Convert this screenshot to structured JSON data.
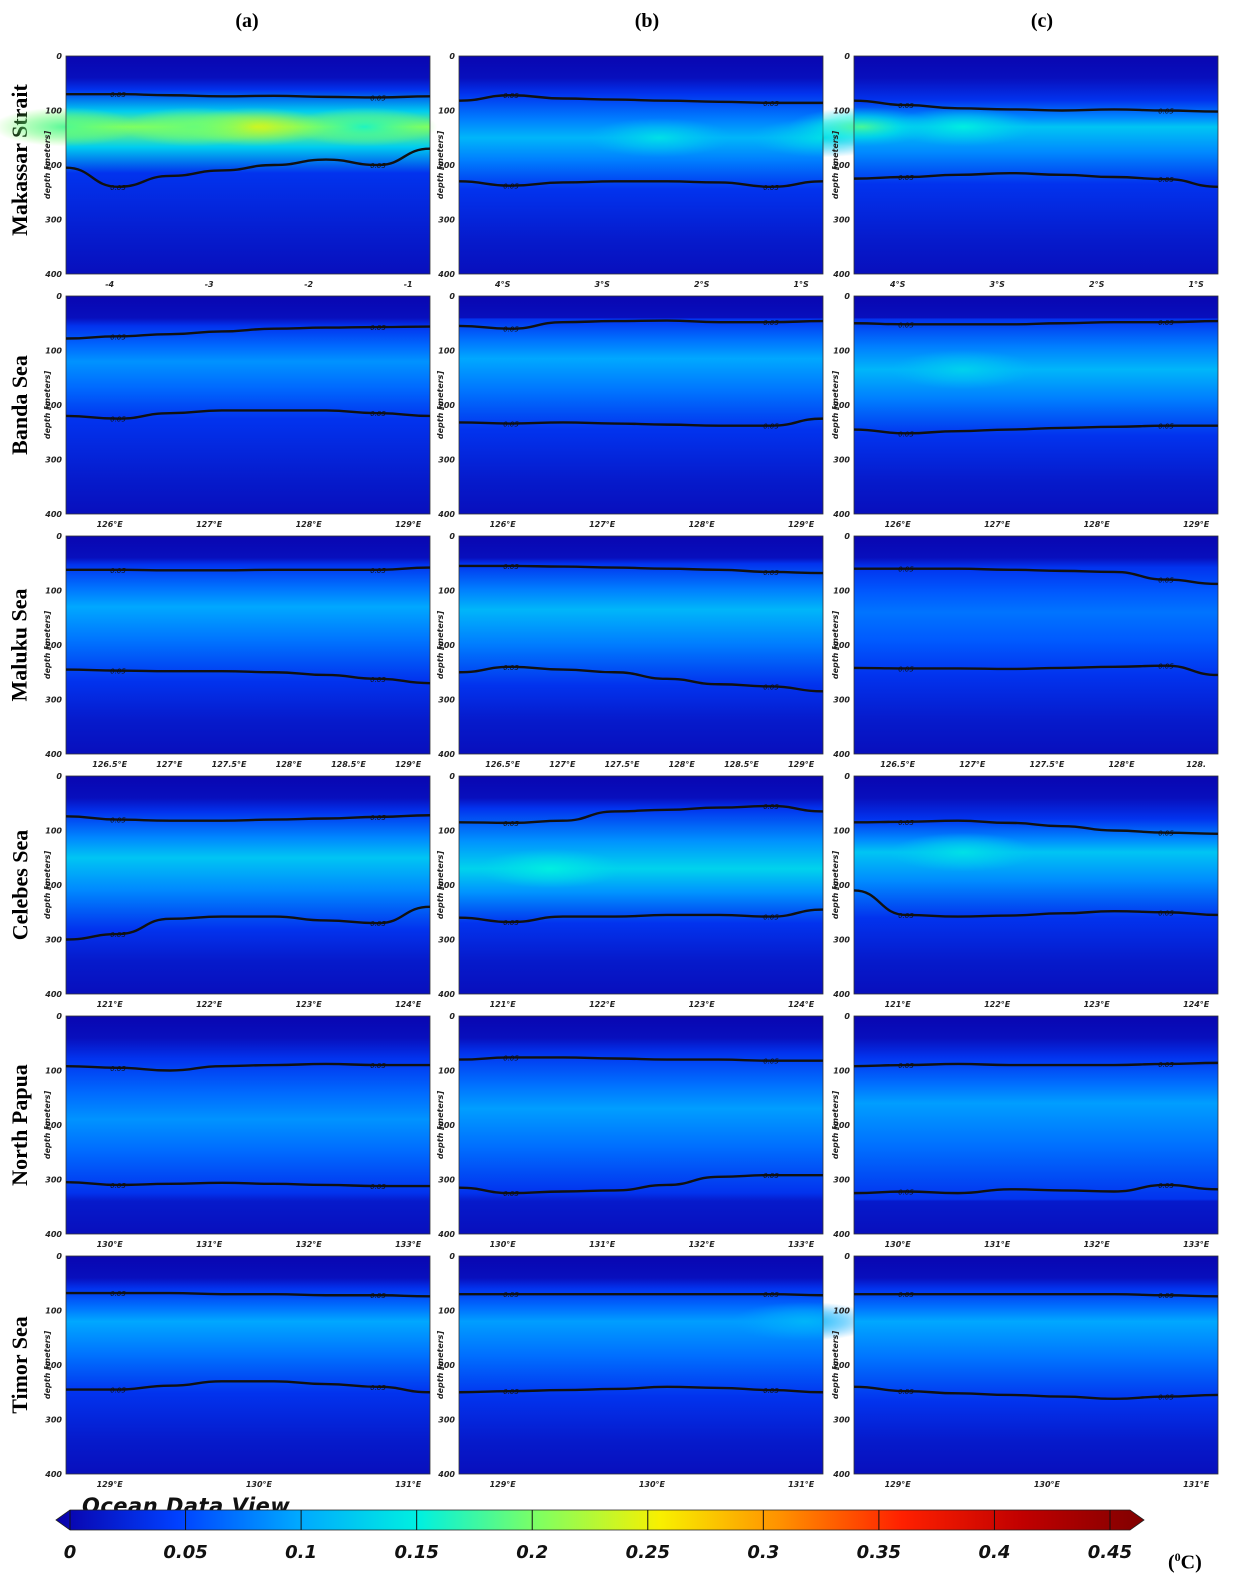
{
  "chart_data": {
    "type": "heatmap",
    "variable_unit": "(0C)",
    "contour_label": "0.05",
    "watermark": "Ocean Data View",
    "columns": [
      "(a)",
      "(b)",
      "(c)"
    ],
    "y_axis": {
      "label": "depth [meters]",
      "ticks": [
        "0",
        "100",
        "200",
        "300",
        "400"
      ],
      "range": [
        0,
        400
      ]
    },
    "colorbar": {
      "ticks": [
        "0",
        "0.05",
        "0.1",
        "0.15",
        "0.2",
        "0.25",
        "0.3",
        "0.35",
        "0.4",
        "0.45"
      ],
      "range": [
        0,
        0.45
      ],
      "colors": [
        "#0a00a8",
        "#0040ff",
        "#00a8ff",
        "#00f0e0",
        "#80ff60",
        "#f8f000",
        "#ff9000",
        "#ff2000",
        "#c00000",
        "#800000"
      ]
    },
    "rows": [
      {
        "name": "Makassar Strait",
        "panels": [
          {
            "xticks": [
              "-4",
              "-3",
              "-2",
              "-1"
            ],
            "contour_upper": [
              70,
              70,
              72,
              74,
              73,
              75,
              76,
              74
            ],
            "contour_lower": [
              205,
              240,
              220,
              210,
              200,
              190,
              200,
              170
            ],
            "core_depth": 130,
            "core_value": 0.2,
            "hot_spots": [
              {
                "x": 0.52,
                "v": 0.24
              },
              {
                "x": 0.35,
                "v": 0.19
              },
              {
                "x": 0.0,
                "v": 0.18
              },
              {
                "x": 0.82,
                "v": 0.16
              }
            ]
          },
          {
            "xticks": [
              "4°S",
              "3°S",
              "2°S",
              "1°S"
            ],
            "contour_upper": [
              82,
              72,
              78,
              80,
              82,
              84,
              86,
              86
            ],
            "contour_lower": [
              230,
              238,
              232,
              230,
              230,
              232,
              240,
              230
            ],
            "core_depth": 150,
            "core_value": 0.11,
            "hot_spots": [
              {
                "x": 0.55,
                "v": 0.14
              },
              {
                "x": 1.0,
                "v": 0.14
              }
            ]
          },
          {
            "xticks": [
              "4°S",
              "3°S",
              "2°S",
              "1°S"
            ],
            "contour_upper": [
              82,
              90,
              96,
              98,
              100,
              98,
              100,
              102
            ],
            "contour_lower": [
              225,
              222,
              218,
              215,
              218,
              222,
              226,
              240
            ],
            "core_depth": 130,
            "core_value": 0.12,
            "hot_spots": [
              {
                "x": 0.02,
                "v": 0.18
              },
              {
                "x": 0.3,
                "v": 0.15
              }
            ]
          }
        ]
      },
      {
        "name": "Banda Sea",
        "panels": [
          {
            "xticks": [
              "126°E",
              "127°E",
              "128°E",
              "129°E"
            ],
            "contour_upper": [
              78,
              74,
              70,
              65,
              60,
              58,
              57,
              56
            ],
            "contour_lower": [
              220,
              225,
              215,
              210,
              210,
              210,
              215,
              220
            ],
            "core_depth": 120,
            "core_value": 0.09,
            "hot_spots": []
          },
          {
            "xticks": [
              "126°E",
              "127°E",
              "128°E",
              "129°E"
            ],
            "contour_upper": [
              55,
              60,
              48,
              46,
              45,
              48,
              48,
              46
            ],
            "contour_lower": [
              232,
              234,
              232,
              234,
              236,
              238,
              238,
              225
            ],
            "core_depth": 115,
            "core_value": 0.1,
            "hot_spots": []
          },
          {
            "xticks": [
              "126°E",
              "127°E",
              "128°E",
              "129°E"
            ],
            "contour_upper": [
              50,
              52,
              52,
              52,
              50,
              48,
              48,
              46
            ],
            "contour_lower": [
              245,
              252,
              248,
              245,
              242,
              240,
              238,
              238
            ],
            "core_depth": 135,
            "core_value": 0.11,
            "hot_spots": [
              {
                "x": 0.3,
                "v": 0.13
              }
            ]
          }
        ]
      },
      {
        "name": "Maluku Sea",
        "panels": [
          {
            "xticks": [
              "126.5°E",
              "127°E",
              "127.5°E",
              "128°E",
              "128.5°E",
              "129°E"
            ],
            "contour_upper": [
              62,
              62,
              63,
              63,
              62,
              62,
              62,
              58
            ],
            "contour_lower": [
              245,
              247,
              248,
              248,
              250,
              255,
              262,
              270
            ],
            "core_depth": 130,
            "core_value": 0.1,
            "hot_spots": []
          },
          {
            "xticks": [
              "126.5°E",
              "127°E",
              "127.5°E",
              "128°E",
              "128.5°E",
              "129°E"
            ],
            "contour_upper": [
              55,
              55,
              56,
              58,
              60,
              62,
              66,
              68
            ],
            "contour_lower": [
              250,
              240,
              245,
              250,
              262,
              272,
              276,
              285
            ],
            "core_depth": 135,
            "core_value": 0.11,
            "hot_spots": []
          },
          {
            "xticks": [
              "126.5°E",
              "127°E",
              "127.5°E",
              "128°E",
              "128."
            ],
            "contour_upper": [
              60,
              60,
              60,
              62,
              64,
              66,
              80,
              88
            ],
            "contour_lower": [
              242,
              243,
              243,
              244,
              242,
              240,
              238,
              255
            ],
            "core_depth": 140,
            "core_value": 0.075,
            "hot_spots": []
          }
        ]
      },
      {
        "name": "Celebes Sea",
        "panels": [
          {
            "xticks": [
              "121°E",
              "122°E",
              "123°E",
              "124°E"
            ],
            "contour_upper": [
              74,
              80,
              82,
              82,
              80,
              78,
              75,
              72
            ],
            "contour_lower": [
              300,
              290,
              262,
              258,
              258,
              265,
              270,
              240
            ],
            "core_depth": 150,
            "core_value": 0.12,
            "hot_spots": []
          },
          {
            "xticks": [
              "121°E",
              "122°E",
              "123°E",
              "124°E"
            ],
            "contour_upper": [
              85,
              86,
              82,
              65,
              62,
              58,
              55,
              65
            ],
            "contour_lower": [
              260,
              268,
              258,
              258,
              255,
              255,
              258,
              245
            ],
            "core_depth": 170,
            "core_value": 0.13,
            "hot_spots": [
              {
                "x": 0.25,
                "v": 0.15
              }
            ]
          },
          {
            "xticks": [
              "121°E",
              "122°E",
              "123°E",
              "124°E"
            ],
            "contour_upper": [
              85,
              84,
              82,
              86,
              92,
              100,
              104,
              106
            ],
            "contour_lower": [
              210,
              255,
              258,
              256,
              252,
              248,
              250,
              255
            ],
            "core_depth": 140,
            "core_value": 0.12,
            "hot_spots": [
              {
                "x": 0.3,
                "v": 0.14
              }
            ]
          }
        ]
      },
      {
        "name": "North Papua",
        "panels": [
          {
            "xticks": [
              "130°E",
              "131°E",
              "132°E",
              "133°E"
            ],
            "contour_upper": [
              92,
              95,
              100,
              92,
              90,
              88,
              90,
              90
            ],
            "contour_lower": [
              305,
              310,
              308,
              306,
              308,
              310,
              312,
              312
            ],
            "core_depth": 190,
            "core_value": 0.09,
            "hot_spots": []
          },
          {
            "xticks": [
              "130°E",
              "131°E",
              "132°E",
              "133°E"
            ],
            "contour_upper": [
              80,
              76,
              76,
              78,
              80,
              80,
              82,
              82
            ],
            "contour_lower": [
              315,
              325,
              322,
              320,
              310,
              295,
              292,
              292
            ],
            "core_depth": 170,
            "core_value": 0.095,
            "hot_spots": []
          },
          {
            "xticks": [
              "130°E",
              "131°E",
              "132°E",
              "133°E"
            ],
            "contour_upper": [
              92,
              90,
              88,
              90,
              90,
              90,
              88,
              86
            ],
            "contour_lower": [
              325,
              322,
              325,
              318,
              320,
              322,
              310,
              318
            ],
            "core_depth": 160,
            "core_value": 0.095,
            "hot_spots": []
          }
        ]
      },
      {
        "name": "Timor Sea",
        "panels": [
          {
            "xticks": [
              "129°E",
              "130°E",
              "131°E"
            ],
            "contour_upper": [
              68,
              68,
              68,
              70,
              70,
              72,
              72,
              74
            ],
            "contour_lower": [
              245,
              245,
              238,
              230,
              230,
              235,
              240,
              250
            ],
            "core_depth": 120,
            "core_value": 0.1,
            "hot_spots": []
          },
          {
            "xticks": [
              "129°E",
              "130°E",
              "131°E"
            ],
            "contour_upper": [
              70,
              70,
              70,
              70,
              70,
              70,
              70,
              72
            ],
            "contour_lower": [
              250,
              248,
              246,
              244,
              240,
              242,
              246,
              250
            ],
            "core_depth": 120,
            "core_value": 0.095,
            "hot_spots": [
              {
                "x": 0.95,
                "v": 0.11
              }
            ]
          },
          {
            "xticks": [
              "129°E",
              "130°E",
              "131°E"
            ],
            "contour_upper": [
              70,
              70,
              70,
              70,
              70,
              70,
              72,
              74
            ],
            "contour_lower": [
              240,
              248,
              252,
              255,
              258,
              262,
              258,
              255
            ],
            "core_depth": 120,
            "core_value": 0.1,
            "hot_spots": []
          }
        ]
      }
    ]
  }
}
